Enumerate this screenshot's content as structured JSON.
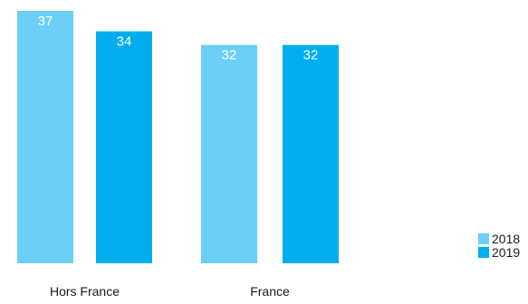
{
  "chart_data": {
    "type": "bar",
    "categories": [
      "Hors France",
      "France"
    ],
    "series": [
      {
        "name": "2018",
        "values": [
          37,
          32
        ],
        "color": "#6CCFF6"
      },
      {
        "name": "2019",
        "values": [
          34,
          32
        ],
        "color": "#00AEEF"
      }
    ],
    "title": "",
    "xlabel": "",
    "ylabel": "",
    "ylim": [
      0,
      37
    ],
    "grid": false,
    "legend_position": "bottom-right"
  },
  "colors": {
    "label_text": "#ffffff",
    "axis_text": "#1a1a1a"
  }
}
